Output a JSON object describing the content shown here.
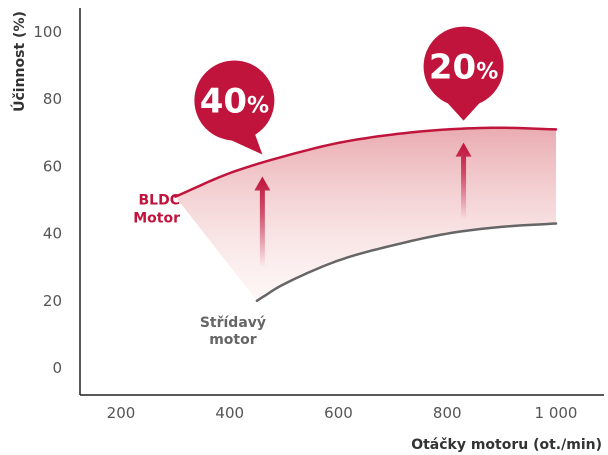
{
  "chart_data": {
    "type": "line",
    "xlabel": "Otáčky motoru (ot./min)",
    "ylabel": "Účinnost (%)",
    "xlim": [
      100,
      1100
    ],
    "ylim": [
      0,
      100
    ],
    "x_ticks": [
      {
        "value": 200,
        "label": "200"
      },
      {
        "value": 400,
        "label": "400"
      },
      {
        "value": 600,
        "label": "600"
      },
      {
        "value": 800,
        "label": "800"
      },
      {
        "value": 1000,
        "label": "1 000"
      }
    ],
    "y_ticks": [
      {
        "value": 0,
        "label": "0"
      },
      {
        "value": 20,
        "label": "20"
      },
      {
        "value": 40,
        "label": "40"
      },
      {
        "value": 60,
        "label": "60"
      },
      {
        "value": 80,
        "label": "80"
      },
      {
        "value": 100,
        "label": "100"
      }
    ],
    "grid": false,
    "series": [
      {
        "name": "BLDC Motor",
        "label_lines": [
          "BLDC",
          "Motor"
        ],
        "color": "#c0143c",
        "x": [
          300,
          400,
          500,
          600,
          700,
          800,
          900,
          1000
        ],
        "y": [
          51,
          58,
          63,
          67,
          69.5,
          71,
          71.5,
          71
        ]
      },
      {
        "name": "Střídavý motor",
        "label_lines": [
          "Střídavý",
          "motor"
        ],
        "color": "#666666",
        "x": [
          450,
          500,
          600,
          700,
          800,
          900,
          1000
        ],
        "y": [
          20,
          25,
          32,
          36.5,
          40,
          42,
          43
        ]
      }
    ],
    "annotations": [
      {
        "main": "40",
        "suffix": "%",
        "x": 460
      },
      {
        "main": "20",
        "suffix": "%",
        "x": 830
      }
    ]
  }
}
